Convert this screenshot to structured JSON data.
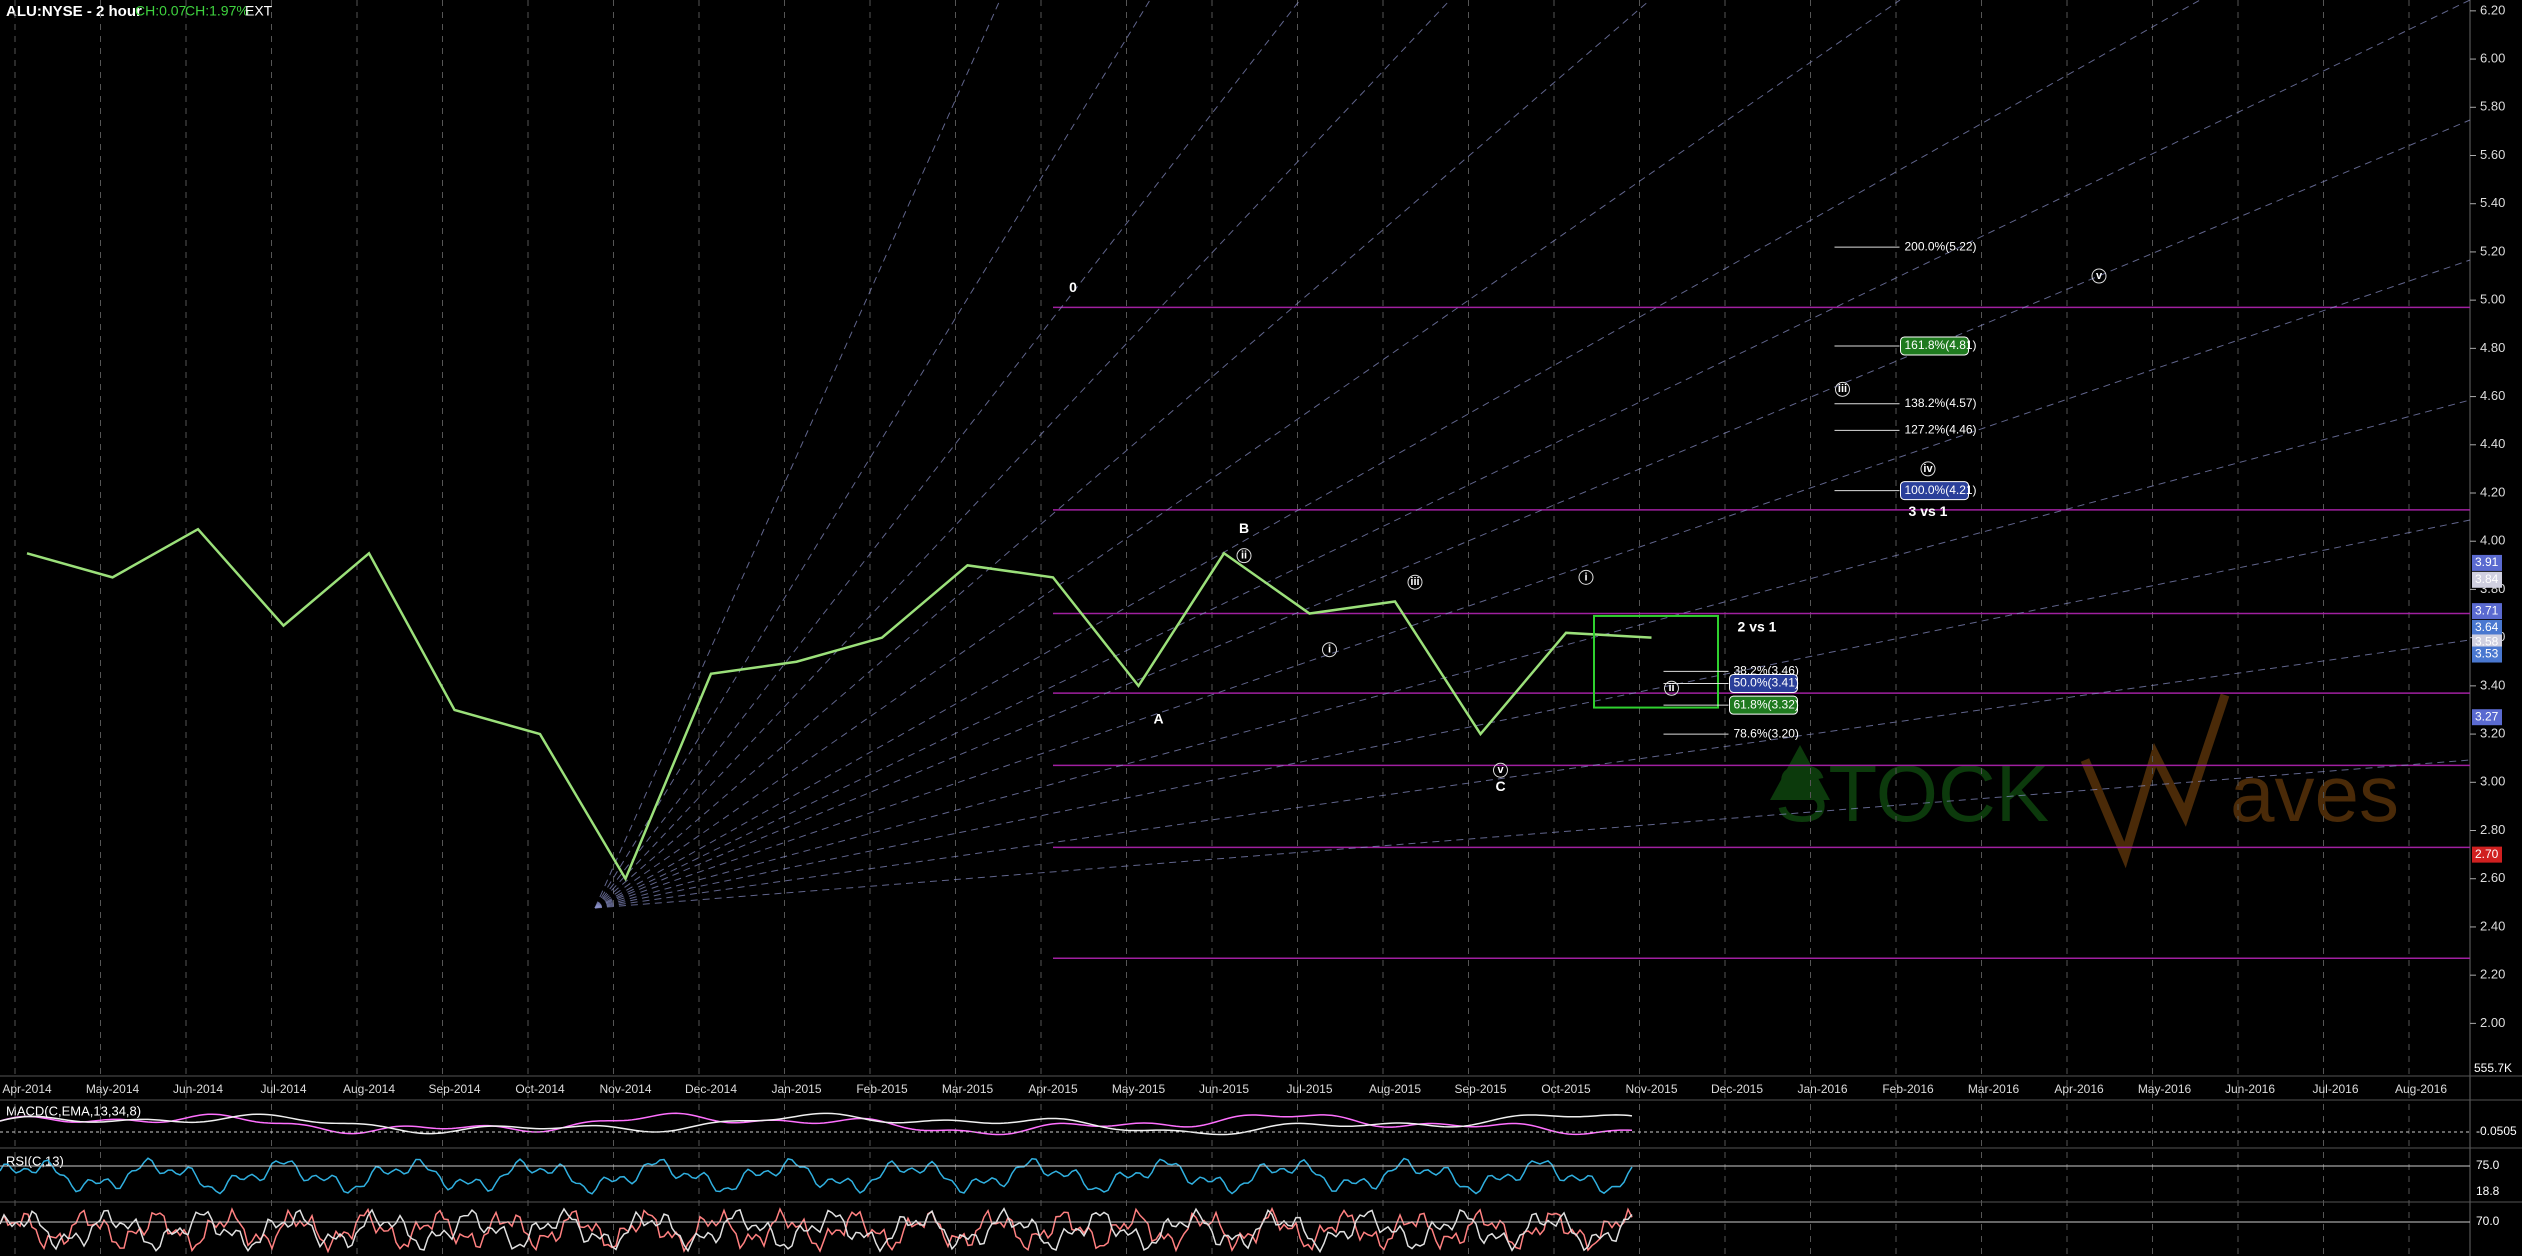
{
  "chart_data": {
    "type": "line",
    "title": "ALU:NYSE - 2 hour",
    "change": "CH:0.07",
    "change_pct": "CH:1.97%",
    "session": "EXT",
    "categories": [
      "Apr-2014",
      "May-2014",
      "Jun-2014",
      "Jul-2014",
      "Aug-2014",
      "Sep-2014",
      "Oct-2014",
      "Nov-2014",
      "Dec-2014",
      "Jan-2015",
      "Feb-2015",
      "Mar-2015",
      "Apr-2015",
      "May-2015",
      "Jun-2015",
      "Jul-2015",
      "Aug-2015",
      "Sep-2015",
      "Oct-2015",
      "Nov-2015",
      "Dec-2015",
      "Jan-2016",
      "Feb-2016",
      "Mar-2016",
      "Apr-2016",
      "May-2016",
      "Jun-2016",
      "Jul-2016",
      "Aug-2016"
    ],
    "series": [
      {
        "name": "ALU",
        "color": "#9be07a",
        "values": [
          3.95,
          3.85,
          4.05,
          3.65,
          3.95,
          3.3,
          3.2,
          2.6,
          3.45,
          3.5,
          3.6,
          3.9,
          3.85,
          3.4,
          3.95,
          3.7,
          3.75,
          3.2,
          3.62,
          3.6,
          null,
          null,
          null,
          null,
          null,
          null,
          null,
          null,
          null
        ]
      }
    ],
    "ylim": [
      1.79,
      6.245
    ],
    "yticks": [
      {
        "value": 2.0,
        "label": "2.00"
      },
      {
        "value": 2.2,
        "label": "2.20"
      },
      {
        "value": 2.4,
        "label": "2.40"
      },
      {
        "value": 2.6,
        "label": "2.60"
      },
      {
        "value": 2.8,
        "label": "2.80"
      },
      {
        "value": 3.0,
        "label": "3.00"
      },
      {
        "value": 3.2,
        "label": "3.20"
      },
      {
        "value": 3.4,
        "label": "3.40"
      },
      {
        "value": 3.6,
        "label": "3.60"
      },
      {
        "value": 3.8,
        "label": "3.80"
      },
      {
        "value": 4.0,
        "label": "4.00"
      },
      {
        "value": 4.2,
        "label": "4.20"
      },
      {
        "value": 4.4,
        "label": "4.40"
      },
      {
        "value": 4.6,
        "label": "4.60"
      },
      {
        "value": 4.8,
        "label": "4.80"
      },
      {
        "value": 5.0,
        "label": "5.00"
      },
      {
        "value": 5.2,
        "label": "5.20"
      },
      {
        "value": 5.4,
        "label": "5.40"
      },
      {
        "value": 5.6,
        "label": "5.60"
      },
      {
        "value": 5.8,
        "label": "5.80"
      },
      {
        "value": 6.0,
        "label": "6.00"
      },
      {
        "value": 6.2,
        "label": "6.20"
      }
    ],
    "grid": true,
    "levels": {
      "from": "Apr-2015",
      "color": "#a020a0",
      "values": [
        4.97,
        4.13,
        3.7,
        3.37,
        3.07,
        2.73,
        2.27
      ]
    },
    "targets": [
      {
        "text": "200.0%(5.22)",
        "at": "Jan-2016",
        "y": 5.22
      },
      {
        "text": "161.8%(4.81)",
        "at": "Jan-2016",
        "y": 4.81,
        "box": "#1f7a1f"
      },
      {
        "text": "138.2%(4.57)",
        "at": "Jan-2016",
        "y": 4.57
      },
      {
        "text": "127.2%(4.46)",
        "at": "Jan-2016",
        "y": 4.46
      },
      {
        "text": "100.0%(4.21)",
        "at": "Jan-2016",
        "y": 4.21,
        "box": "#2a3f9a"
      },
      {
        "text": "38.2%(3.46)",
        "at": "Nov-2015",
        "y": 3.46
      },
      {
        "text": "50.0%(3.41)",
        "at": "Nov-2015",
        "y": 3.41,
        "box": "#2a3f9a"
      },
      {
        "text": "61.8%(3.32)",
        "at": "Nov-2015",
        "y": 3.32,
        "box": "#1f7a1f"
      },
      {
        "text": "78.6%(3.20)",
        "at": "Nov-2015",
        "y": 3.2
      }
    ],
    "waves": [
      {
        "text": "0",
        "at": "Apr-2015",
        "y": 5.05
      },
      {
        "text": "A",
        "at": "May-2015",
        "y": 3.26
      },
      {
        "text": "B",
        "at": "Jun-2015",
        "y": 4.05
      },
      {
        "text": "C",
        "at": "Sep-2015",
        "y": 2.98
      },
      {
        "text": "2 vs 1",
        "at": "Dec-2015",
        "y": 3.64
      },
      {
        "text": "3 vs 1",
        "at": "Feb-2016",
        "y": 4.12
      },
      {
        "text": "ii",
        "at": "Jun-2015",
        "y": 3.94,
        "circle": true
      },
      {
        "text": "i",
        "at": "Jul-2015",
        "y": 3.55,
        "circle": true
      },
      {
        "text": "iii",
        "at": "Aug-2015",
        "y": 3.83,
        "circle": true
      },
      {
        "text": "v",
        "at": "Sep-2015",
        "y": 3.05,
        "circle": true
      },
      {
        "text": "i",
        "at": "Oct-2015",
        "y": 3.85,
        "circle": true
      },
      {
        "text": "ii",
        "at": "Nov-2015",
        "y": 3.39,
        "circle": true
      },
      {
        "text": "iii",
        "at": "Jan-2016",
        "y": 4.63,
        "circle": true
      },
      {
        "text": "iv",
        "at": "Feb-2016",
        "y": 4.3,
        "circle": true
      },
      {
        "text": "v",
        "at": "Apr-2016",
        "y": 5.1,
        "circle": true
      }
    ],
    "price_tags": [
      {
        "value": 3.91,
        "label": "3.91",
        "color": "#5a6ad0"
      },
      {
        "value": 3.84,
        "label": "3.84",
        "color": "#d0d0e0"
      },
      {
        "value": 3.71,
        "label": "3.71",
        "color": "#5a6ad0"
      },
      {
        "value": 3.64,
        "label": "3.64",
        "color": "#4a78d0"
      },
      {
        "value": 3.58,
        "label": "3.58",
        "color": "#d0d0e0"
      },
      {
        "value": 3.53,
        "label": "3.53",
        "color": "#4a78d0"
      },
      {
        "value": 3.27,
        "label": "3.27",
        "color": "#5a6ad0"
      },
      {
        "value": 2.7,
        "label": "2.70",
        "color": "#d02020"
      }
    ],
    "volume_label": "555.7K",
    "macd_label": "MACD(C,EMA,13,34,8)",
    "macd_value": "-0.0505",
    "rsi_label": "RSI(C,13)",
    "rsi_level": "75.0",
    "rsi_value": "18.8",
    "stoch_level": "70.0",
    "watermark": {
      "left": "STOCK",
      "right": "aves"
    }
  }
}
